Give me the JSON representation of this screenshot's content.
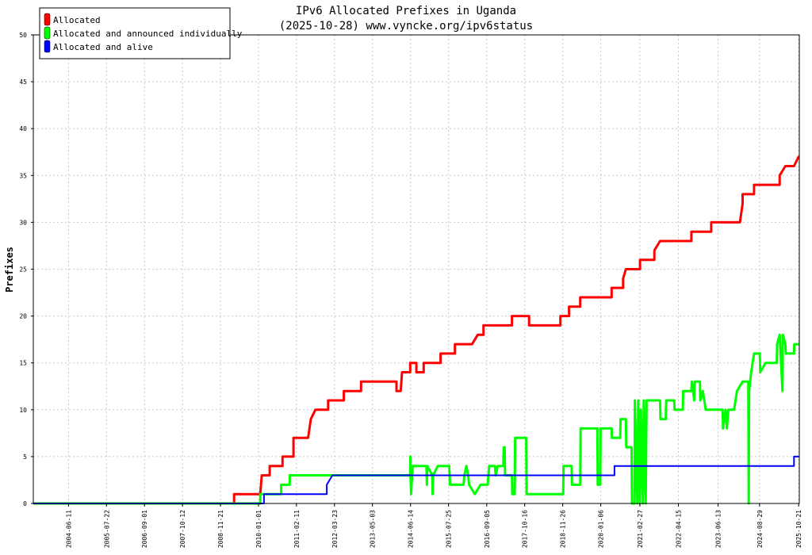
{
  "chart_data": {
    "type": "line",
    "title": "IPv6 Allocated Prefixes in Uganda",
    "subtitle": "(2025-10-28) www.vyncke.org/ipv6status",
    "ylabel": "Prefixes",
    "xlabel": "",
    "x_range": [
      "2003-06-01",
      "2025-10-28"
    ],
    "ylim": [
      0,
      50
    ],
    "yticks": [
      0,
      5,
      10,
      15,
      20,
      25,
      30,
      35,
      40,
      45,
      50
    ],
    "xticks": [
      "2004-06-11",
      "2005-07-22",
      "2006-09-01",
      "2007-10-12",
      "2008-11-21",
      "2010-01-01",
      "2011-02-11",
      "2012-03-23",
      "2013-05-03",
      "2014-06-14",
      "2015-07-25",
      "2016-09-05",
      "2017-10-16",
      "2018-11-26",
      "2020-01-06",
      "2021-02-27",
      "2022-04-15",
      "2023-06-13",
      "2024-08-29",
      "2025-10-21"
    ],
    "grid": true,
    "legend_position": "top-left",
    "series": [
      {
        "name": "Allocated",
        "color": "#ff0000",
        "points": [
          [
            "2003-06-01",
            0
          ],
          [
            "2009-04-15",
            0
          ],
          [
            "2009-04-15",
            1
          ],
          [
            "2010-01-20",
            1
          ],
          [
            "2010-02-05",
            3
          ],
          [
            "2010-05-01",
            3
          ],
          [
            "2010-05-01",
            4
          ],
          [
            "2010-09-15",
            4
          ],
          [
            "2010-09-15",
            5
          ],
          [
            "2011-01-10",
            5
          ],
          [
            "2011-01-10",
            7
          ],
          [
            "2011-06-15",
            7
          ],
          [
            "2011-07-15",
            9
          ],
          [
            "2011-09-01",
            10
          ],
          [
            "2012-01-15",
            10
          ],
          [
            "2012-01-15",
            11
          ],
          [
            "2012-07-01",
            11
          ],
          [
            "2012-07-01",
            12
          ],
          [
            "2013-01-01",
            12
          ],
          [
            "2013-01-01",
            13
          ],
          [
            "2014-01-15",
            13
          ],
          [
            "2014-01-15",
            12
          ],
          [
            "2014-03-01",
            12
          ],
          [
            "2014-03-15",
            14
          ],
          [
            "2014-06-10",
            14
          ],
          [
            "2014-06-10",
            15
          ],
          [
            "2014-08-15",
            15
          ],
          [
            "2014-08-15",
            14
          ],
          [
            "2014-11-01",
            14
          ],
          [
            "2014-11-01",
            15
          ],
          [
            "2015-05-01",
            15
          ],
          [
            "2015-05-01",
            16
          ],
          [
            "2015-10-01",
            16
          ],
          [
            "2015-10-01",
            17
          ],
          [
            "2016-04-01",
            17
          ],
          [
            "2016-06-01",
            18
          ],
          [
            "2016-08-01",
            18
          ],
          [
            "2016-08-01",
            19
          ],
          [
            "2017-06-01",
            19
          ],
          [
            "2017-06-01",
            20
          ],
          [
            "2017-12-01",
            20
          ],
          [
            "2017-12-01",
            19
          ],
          [
            "2018-11-01",
            19
          ],
          [
            "2018-11-01",
            20
          ],
          [
            "2019-02-01",
            20
          ],
          [
            "2019-02-01",
            21
          ],
          [
            "2019-06-01",
            21
          ],
          [
            "2019-06-01",
            22
          ],
          [
            "2020-05-01",
            22
          ],
          [
            "2020-05-01",
            23
          ],
          [
            "2020-09-01",
            23
          ],
          [
            "2020-09-01",
            24
          ],
          [
            "2020-10-01",
            25
          ],
          [
            "2021-03-01",
            25
          ],
          [
            "2021-03-01",
            26
          ],
          [
            "2021-08-01",
            26
          ],
          [
            "2021-08-01",
            27
          ],
          [
            "2021-10-01",
            28
          ],
          [
            "2022-09-01",
            28
          ],
          [
            "2022-09-01",
            29
          ],
          [
            "2023-04-01",
            29
          ],
          [
            "2023-04-01",
            30
          ],
          [
            "2024-02-01",
            30
          ],
          [
            "2024-03-01",
            32
          ],
          [
            "2024-03-01",
            33
          ],
          [
            "2024-07-01",
            33
          ],
          [
            "2024-07-01",
            34
          ],
          [
            "2025-04-01",
            34
          ],
          [
            "2025-04-01",
            35
          ],
          [
            "2025-06-01",
            36
          ],
          [
            "2025-09-01",
            36
          ],
          [
            "2025-10-20",
            37
          ],
          [
            "2025-10-28",
            37
          ]
        ]
      },
      {
        "name": "Allocated and announced individually",
        "color": "#00ff00",
        "points": [
          [
            "2003-06-01",
            0
          ],
          [
            "2010-01-20",
            0
          ],
          [
            "2010-01-20",
            1
          ],
          [
            "2010-09-01",
            1
          ],
          [
            "2010-09-01",
            2
          ],
          [
            "2010-12-01",
            2
          ],
          [
            "2010-12-01",
            3
          ],
          [
            "2012-03-15",
            3
          ],
          [
            "2012-04-01",
            3
          ],
          [
            "2014-06-10",
            3
          ],
          [
            "2014-06-12",
            5
          ],
          [
            "2014-06-14",
            3
          ],
          [
            "2014-06-20",
            1
          ],
          [
            "2014-07-01",
            3
          ],
          [
            "2014-07-10",
            4
          ],
          [
            "2014-12-01",
            4
          ],
          [
            "2014-12-05",
            2
          ],
          [
            "2014-12-10",
            4
          ],
          [
            "2015-02-01",
            3
          ],
          [
            "2015-02-05",
            1
          ],
          [
            "2015-02-10",
            3
          ],
          [
            "2015-04-01",
            4
          ],
          [
            "2015-08-01",
            4
          ],
          [
            "2015-08-05",
            3
          ],
          [
            "2015-08-10",
            2
          ],
          [
            "2016-01-01",
            2
          ],
          [
            "2016-01-10",
            3
          ],
          [
            "2016-02-01",
            4
          ],
          [
            "2016-02-20",
            3
          ],
          [
            "2016-03-01",
            2
          ],
          [
            "2016-05-01",
            1
          ],
          [
            "2016-07-01",
            2
          ],
          [
            "2016-08-01",
            2
          ],
          [
            "2016-09-15",
            2
          ],
          [
            "2016-10-01",
            4
          ],
          [
            "2016-12-01",
            4
          ],
          [
            "2016-12-10",
            3
          ],
          [
            "2017-01-01",
            4
          ],
          [
            "2017-03-01",
            4
          ],
          [
            "2017-03-05",
            6
          ],
          [
            "2017-03-15",
            6
          ],
          [
            "2017-03-20",
            3
          ],
          [
            "2017-06-01",
            3
          ],
          [
            "2017-06-05",
            1
          ],
          [
            "2017-07-01",
            1
          ],
          [
            "2017-07-05",
            7
          ],
          [
            "2017-11-01",
            7
          ],
          [
            "2017-11-05",
            1
          ],
          [
            "2018-12-01",
            1
          ],
          [
            "2018-12-05",
            4
          ],
          [
            "2019-03-01",
            4
          ],
          [
            "2019-03-05",
            2
          ],
          [
            "2019-06-01",
            2
          ],
          [
            "2019-06-05",
            8
          ],
          [
            "2019-12-01",
            8
          ],
          [
            "2019-12-05",
            2
          ],
          [
            "2020-01-01",
            2
          ],
          [
            "2020-01-05",
            8
          ],
          [
            "2020-05-01",
            8
          ],
          [
            "2020-05-05",
            7
          ],
          [
            "2020-08-01",
            7
          ],
          [
            "2020-08-05",
            9
          ],
          [
            "2020-10-01",
            9
          ],
          [
            "2020-10-05",
            6
          ],
          [
            "2020-12-01",
            6
          ],
          [
            "2020-12-05",
            0
          ],
          [
            "2021-01-01",
            0
          ],
          [
            "2021-01-05",
            11
          ],
          [
            "2021-02-01",
            0
          ],
          [
            "2021-02-10",
            11
          ],
          [
            "2021-03-01",
            0
          ],
          [
            "2021-03-10",
            10
          ],
          [
            "2021-04-01",
            0
          ],
          [
            "2021-04-10",
            11
          ],
          [
            "2021-05-01",
            0
          ],
          [
            "2021-05-10",
            11
          ],
          [
            "2021-06-01",
            11
          ],
          [
            "2021-10-01",
            11
          ],
          [
            "2021-10-05",
            9
          ],
          [
            "2021-12-01",
            9
          ],
          [
            "2021-12-05",
            11
          ],
          [
            "2022-03-01",
            11
          ],
          [
            "2022-03-05",
            10
          ],
          [
            "2022-06-01",
            10
          ],
          [
            "2022-06-05",
            12
          ],
          [
            "2022-09-01",
            12
          ],
          [
            "2022-09-05",
            13
          ],
          [
            "2022-10-01",
            11
          ],
          [
            "2022-10-05",
            13
          ],
          [
            "2022-12-01",
            13
          ],
          [
            "2022-12-05",
            11
          ],
          [
            "2023-01-01",
            12
          ],
          [
            "2023-02-01",
            10
          ],
          [
            "2023-08-01",
            10
          ],
          [
            "2023-08-05",
            8
          ],
          [
            "2023-09-01",
            10
          ],
          [
            "2023-09-15",
            8
          ],
          [
            "2023-10-01",
            10
          ],
          [
            "2023-12-01",
            10
          ],
          [
            "2024-01-01",
            12
          ],
          [
            "2024-03-01",
            13
          ],
          [
            "2024-05-01",
            13
          ],
          [
            "2024-05-05",
            0
          ],
          [
            "2024-05-10",
            12
          ],
          [
            "2024-06-01",
            14
          ],
          [
            "2024-07-01",
            16
          ],
          [
            "2024-09-01",
            16
          ],
          [
            "2024-09-05",
            14
          ],
          [
            "2024-11-01",
            15
          ],
          [
            "2025-03-01",
            15
          ],
          [
            "2025-03-05",
            17
          ],
          [
            "2025-04-01",
            18
          ],
          [
            "2025-05-01",
            12
          ],
          [
            "2025-05-05",
            18
          ],
          [
            "2025-06-01",
            17
          ],
          [
            "2025-06-05",
            16
          ],
          [
            "2025-09-01",
            16
          ],
          [
            "2025-09-05",
            17
          ],
          [
            "2025-10-28",
            17
          ]
        ]
      },
      {
        "name": "Allocated and alive",
        "color": "#0000ff",
        "points": [
          [
            "2003-06-01",
            0
          ],
          [
            "2010-03-01",
            0
          ],
          [
            "2010-03-01",
            1
          ],
          [
            "2011-01-15",
            1
          ],
          [
            "2011-01-15",
            1
          ],
          [
            "2012-01-01",
            1
          ],
          [
            "2012-01-01",
            2
          ],
          [
            "2012-03-01",
            3
          ],
          [
            "2012-06-01",
            3
          ],
          [
            "2014-01-01",
            3
          ],
          [
            "2014-01-01",
            3
          ],
          [
            "2020-06-01",
            3
          ],
          [
            "2020-06-01",
            4
          ],
          [
            "2025-09-01",
            4
          ],
          [
            "2025-09-01",
            5
          ],
          [
            "2025-10-28",
            5
          ]
        ]
      }
    ]
  }
}
